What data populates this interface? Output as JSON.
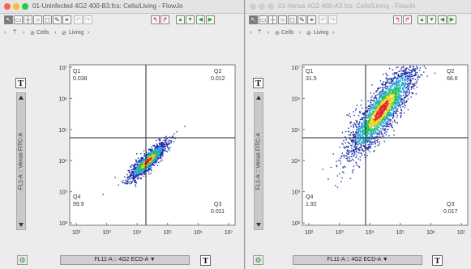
{
  "colors": {
    "close": "#fc5f57",
    "minimize": "#fdbb2e",
    "zoom": "#2ac940",
    "gate_line": "#222222"
  },
  "toolbar_icons": [
    "select-arrow-icon",
    "rectangle-gate-icon",
    "quadrant-gate-icon",
    "ellipse-gate-icon",
    "polygon-gate-icon",
    "pencil-icon",
    "link-icon",
    "undo-icon",
    "redo-icon",
    "back-icon",
    "forward-icon",
    "up-icon",
    "down-icon",
    "prev-icon",
    "next-icon"
  ],
  "windows": [
    {
      "title": "01-Uninfected 4G2 400-B3.fcs: Cells/Living - FlowJo",
      "breadcrumb": {
        "parent": "Cells",
        "current": "Living"
      },
      "plot": {
        "y_axis_label": "FL1-A :: Venus FITC-A",
        "x_axis_label": "FL11-A :: 4G2 ECD-A",
        "y_ticks": [
          "10⁷",
          "10⁶",
          "10⁵",
          "10⁴",
          "10³",
          "10²"
        ],
        "x_ticks": [
          "10²",
          "10³",
          "10⁴",
          "10⁵",
          "10⁶",
          "10⁷"
        ],
        "quadrants": [
          {
            "name": "Q1",
            "value": "0.038"
          },
          {
            "name": "Q2",
            "value": "0.012"
          },
          {
            "name": "Q3",
            "value": "0.011"
          },
          {
            "name": "Q4",
            "value": "99.9"
          }
        ]
      },
      "T_label": "T"
    },
    {
      "title": "01-Venus 4G2 400-A3.fcs: Cells/Living - FlowJo",
      "breadcrumb": {
        "parent": "Cells",
        "current": "Living"
      },
      "plot": {
        "y_axis_label": "FL1-A :: Venus FITC-A",
        "x_axis_label": "FL11-A :: 4G2 ECD-A",
        "y_ticks": [
          "10⁷",
          "10⁶",
          "10⁵",
          "10⁴",
          "10³",
          "10²"
        ],
        "x_ticks": [
          "10²",
          "10³",
          "10⁴",
          "10⁵",
          "10⁶",
          "10⁷"
        ],
        "quadrants": [
          {
            "name": "Q1",
            "value": "31.5"
          },
          {
            "name": "Q2",
            "value": "66.6"
          },
          {
            "name": "Q3",
            "value": "0.017"
          },
          {
            "name": "Q4",
            "value": "1.92"
          }
        ]
      },
      "T_label": "T"
    }
  ]
}
